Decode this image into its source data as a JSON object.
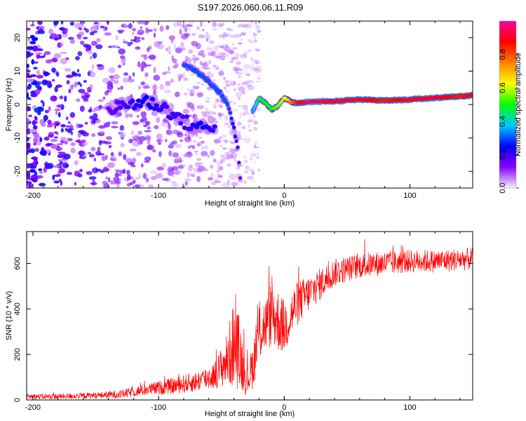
{
  "title": "S197.2026.060.06.11.R09",
  "colorbar": {
    "label": "Normalized spectral amplitude",
    "ticks": [
      "0.0",
      "0.2",
      "0.4",
      "0.6",
      "0.8"
    ],
    "tick_values": [
      0.0,
      0.2,
      0.4,
      0.6,
      0.8
    ],
    "range": [
      0,
      1
    ],
    "stops": [
      "#f4f0fb",
      "#8a00ff",
      "#0000ff",
      "#00c8ff",
      "#00ff00",
      "#ffff00",
      "#ff8000",
      "#ff0000",
      "#ff00a0"
    ]
  },
  "chart_data": [
    {
      "type": "heatmap",
      "name": "spectrogram",
      "xlabel": "Height of straight line (km)",
      "ylabel": "Frequency (Hz)",
      "xlim": [
        -205,
        150
      ],
      "ylim": [
        -25,
        25
      ],
      "xticks": [
        -200,
        -100,
        0,
        100
      ],
      "xtick_labels": [
        "-200",
        "-100",
        "0",
        "100"
      ],
      "yticks": [
        -20,
        -10,
        0,
        10,
        20
      ],
      "ytick_labels": [
        "-20",
        "-10",
        "0",
        "10",
        "20"
      ],
      "ridge_main": {
        "x": [
          -25,
          -20,
          -15,
          -10,
          -5,
          0,
          5,
          10,
          20,
          40,
          60,
          80,
          100,
          120,
          140,
          150
        ],
        "y": [
          -2,
          2,
          0.5,
          -1.5,
          -0.5,
          2,
          0.8,
          0.5,
          0.8,
          1.0,
          1.5,
          1.2,
          1.5,
          2.0,
          2.5,
          2.8
        ],
        "amplitude": [
          0.35,
          0.45,
          0.5,
          0.5,
          0.55,
          0.6,
          0.75,
          0.85,
          0.95,
          0.9,
          0.9,
          0.85,
          0.9,
          0.9,
          0.85,
          0.9
        ]
      },
      "ridge_falling": {
        "x": [
          -80,
          -70,
          -60,
          -50,
          -45,
          -40,
          -37,
          -35
        ],
        "y": [
          12,
          10,
          7,
          3,
          0,
          -7,
          -13,
          -22
        ],
        "amplitude": [
          0.3,
          0.3,
          0.3,
          0.3,
          0.3,
          0.25,
          0.2,
          0.15
        ]
      },
      "band_low": {
        "x": [
          -140,
          -125,
          -110,
          -95,
          -85,
          -75,
          -65,
          -55
        ],
        "y": [
          -2,
          0,
          1,
          -1,
          -4,
          -6,
          -7,
          -6
        ],
        "amplitude": [
          0.15,
          0.2,
          0.25,
          0.2,
          0.2,
          0.2,
          0.25,
          0.2
        ]
      },
      "noise_region_x": [
        -205,
        -80
      ]
    },
    {
      "type": "line",
      "name": "snr",
      "xlabel": "Height of straight line (km)",
      "ylabel": "SNR (10 * v/v)",
      "color": "#ff0000",
      "xlim": [
        -205,
        150
      ],
      "ylim": [
        0,
        740
      ],
      "xticks": [
        -200,
        -100,
        0,
        100
      ],
      "xtick_labels": [
        "-200",
        "-100",
        "0",
        "100"
      ],
      "yticks": [
        0,
        200,
        400,
        600
      ],
      "ytick_labels": [
        "0",
        "200",
        "400",
        "600"
      ],
      "envelope": {
        "x": [
          -205,
          -180,
          -150,
          -130,
          -110,
          -90,
          -70,
          -55,
          -45,
          -40,
          -35,
          -30,
          -25,
          -20,
          -15,
          -10,
          -5,
          0,
          10,
          20,
          40,
          60,
          80,
          100,
          120,
          150
        ],
        "mean": [
          15,
          15,
          20,
          25,
          45,
          60,
          80,
          110,
          180,
          250,
          200,
          80,
          150,
          300,
          330,
          380,
          350,
          320,
          420,
          470,
          560,
          590,
          600,
          610,
          610,
          620
        ],
        "spread": [
          12,
          12,
          14,
          18,
          25,
          35,
          45,
          60,
          120,
          200,
          160,
          60,
          100,
          140,
          120,
          150,
          140,
          120,
          100,
          80,
          60,
          55,
          55,
          50,
          50,
          50
        ]
      }
    }
  ]
}
